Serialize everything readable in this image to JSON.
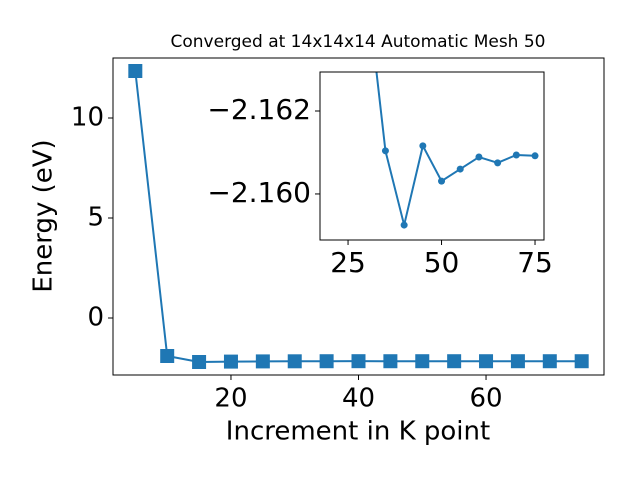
{
  "chart_data": [
    {
      "type": "line",
      "title": "Converged at 14x14x14 Automatic Mesh 50",
      "xlabel": "Increment in K point",
      "ylabel": "Energy (eV)",
      "x": [
        5,
        10,
        15,
        20,
        25,
        30,
        35,
        40,
        45,
        50,
        55,
        60,
        65,
        70,
        75
      ],
      "series": [
        {
          "color": "#1f77b4",
          "marker": "square",
          "values": [
            12.35,
            -1.9,
            -2.2,
            -2.18,
            -2.17,
            -2.165,
            -2.16104,
            -2.15925,
            -2.16116,
            -2.16031,
            -2.1606,
            -2.16089,
            -2.16075,
            -2.16094,
            -2.16092
          ]
        }
      ],
      "xlim": [
        1.5,
        78.5
      ],
      "ylim": [
        -2.85,
        13.0
      ],
      "xticks": [
        20,
        40,
        60
      ],
      "yticks": [
        0,
        5,
        10
      ]
    },
    {
      "type": "line",
      "x": [
        30,
        35,
        40,
        45,
        50,
        55,
        60,
        65,
        70,
        75
      ],
      "series": [
        {
          "color": "#1f77b4",
          "marker": "circle",
          "values": [
            -2.165,
            -2.16104,
            -2.15925,
            -2.16116,
            -2.16031,
            -2.1606,
            -2.16089,
            -2.16075,
            -2.16094,
            -2.16092
          ]
        }
      ],
      "xlim": [
        17.5,
        77.4
      ],
      "ylim": [
        -2.15889,
        -2.16294
      ],
      "xticks": [
        25,
        50,
        75
      ],
      "yticks": [
        {
          "value": -2.162,
          "label": "−2.162"
        },
        {
          "value": -2.16,
          "label": "−2.160"
        }
      ]
    }
  ]
}
